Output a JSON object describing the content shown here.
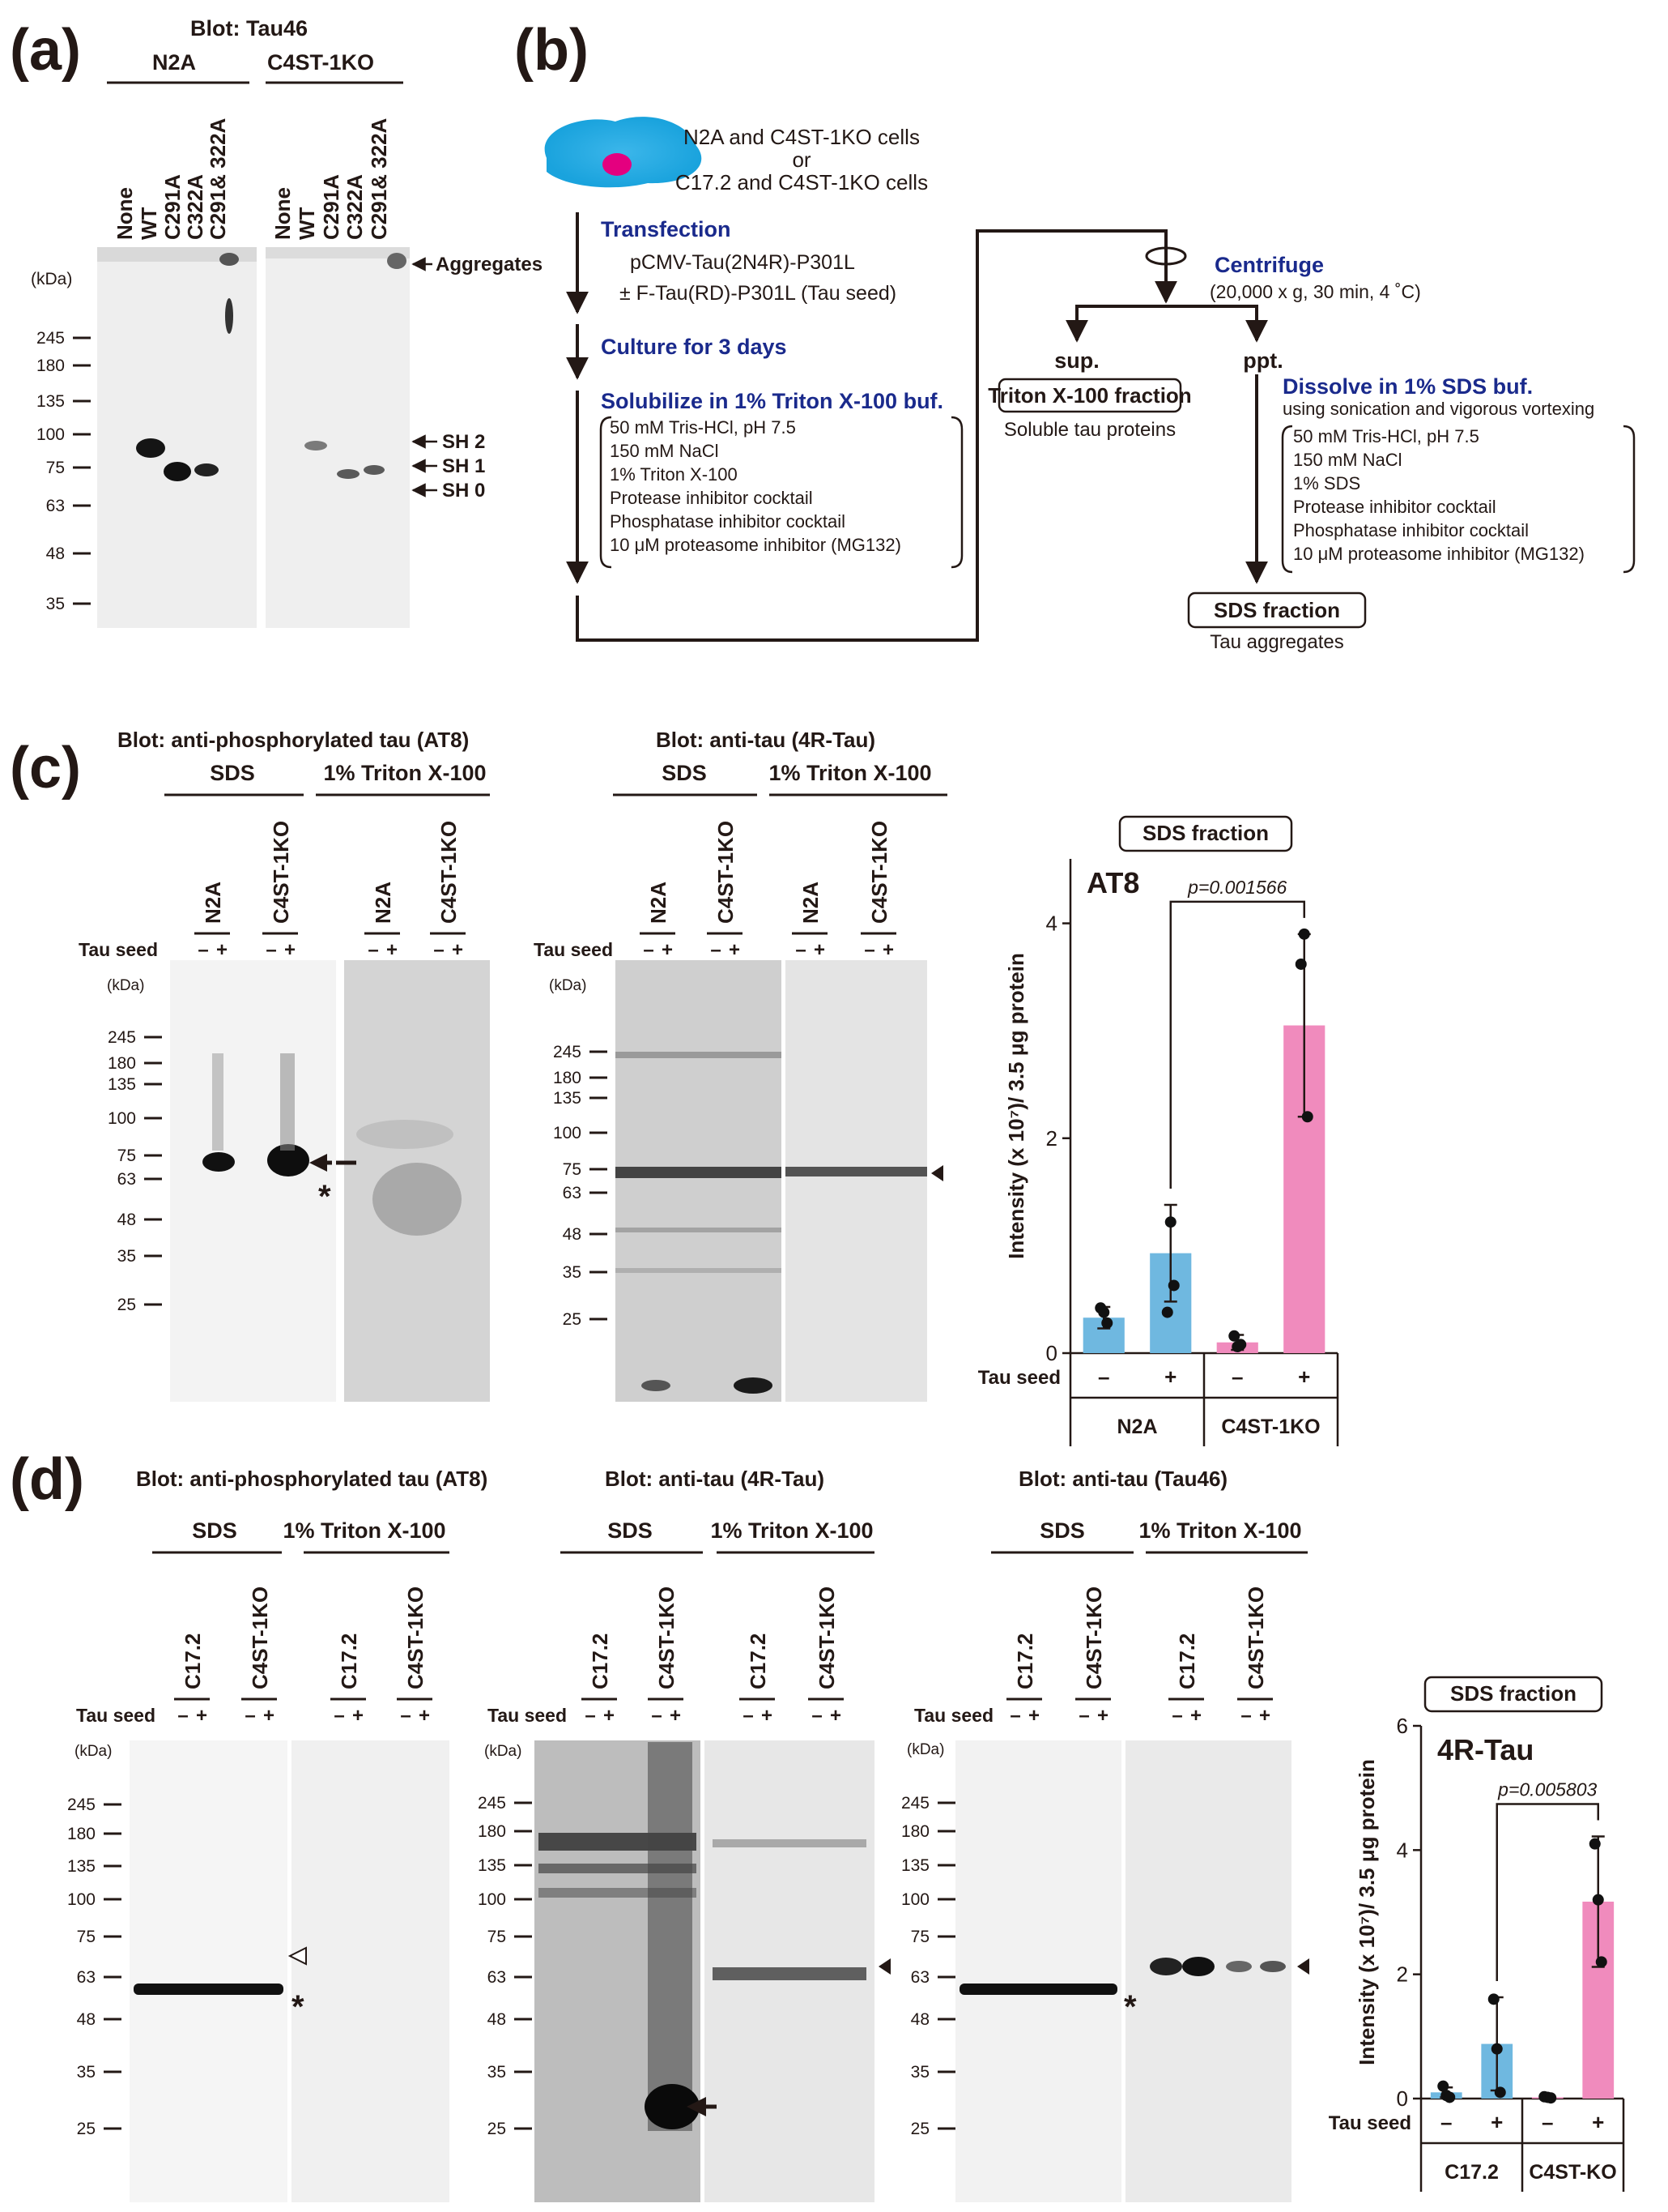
{
  "panels": {
    "a": {
      "label": "(a)",
      "blot": "Blot: Tau46",
      "groups": [
        "N2A",
        "C4ST-1KO"
      ],
      "lanes": [
        "None",
        "WT",
        "C291A",
        "C322A",
        "C291& 322A"
      ],
      "kda_label": "(kDa)",
      "markers": [
        "245",
        "180",
        "135",
        "100",
        "75",
        "63",
        "48",
        "35"
      ],
      "annotations": [
        "Aggregates",
        "SH 2",
        "SH 1",
        "SH 0"
      ]
    },
    "b": {
      "label": "(b)",
      "cells": [
        "N2A and C4ST-1KO cells",
        "or",
        "C17.2 and C4ST-1KO cells"
      ],
      "transfection_title": "Transfection",
      "transfection_lines": [
        "pCMV-Tau(2N4R)-P301L",
        "± F-Tau(RD)-P301L (Tau seed)"
      ],
      "culture": "Culture for 3 days",
      "solubilize": "Solubilize in 1% Triton X-100 buf.",
      "triton_buffer": [
        "50 mM Tris-HCl, pH 7.5",
        "150 mM NaCl",
        "1% Triton X-100",
        "Protease inhibitor cocktail",
        "Phosphatase inhibitor cocktail",
        "10 μM proteasome inhibitor (MG132)"
      ],
      "centrifuge_title": "Centrifuge",
      "centrifuge_cond": "(20,000 x g, 30 min, 4 ˚C)",
      "sup": "sup.",
      "ppt": "ppt.",
      "triton_fraction": "Triton X-100 fraction",
      "soluble": "Soluble tau proteins",
      "dissolve": "Dissolve in 1% SDS buf.",
      "dissolve_sub": "using sonication and vigorous vortexing",
      "sds_buffer": [
        "50 mM Tris-HCl, pH 7.5",
        "150 mM NaCl",
        "1% SDS",
        "Protease inhibitor cocktail",
        "Phosphatase inhibitor cocktail",
        "10 μM proteasome inhibitor (MG132)"
      ],
      "sds_fraction": "SDS fraction",
      "aggregates": "Tau aggregates"
    },
    "c": {
      "label": "(c)",
      "blot1": "Blot: anti-phosphorylated tau (AT8)",
      "blot2": "Blot: anti-tau (4R-Tau)",
      "sds": "SDS",
      "triton": "1% Triton X-100",
      "cells": [
        "N2A",
        "C4ST-1KO"
      ],
      "tau_seed": "Tau seed",
      "minus": "–",
      "plus": "+",
      "kda_label": "(kDa)",
      "markers": [
        "245",
        "180",
        "135",
        "100",
        "75",
        "63",
        "48",
        "35",
        "25"
      ],
      "star": "*"
    },
    "d": {
      "label": "(d)",
      "blot1": "Blot: anti-phosphorylated tau (AT8)",
      "blot2": "Blot: anti-tau (4R-Tau)",
      "blot3": "Blot: anti-tau (Tau46)",
      "sds": "SDS",
      "triton": "1% Triton X-100",
      "cells": [
        "C17.2",
        "C4ST-1KO"
      ],
      "tau_seed": "Tau seed",
      "minus": "–",
      "plus": "+",
      "kda_label": "(kDa)",
      "markers": [
        "245",
        "180",
        "135",
        "100",
        "75",
        "63",
        "48",
        "35",
        "25"
      ],
      "star": "*"
    }
  },
  "chart_data": [
    {
      "type": "bar",
      "badge": "SDS fraction",
      "title": "AT8",
      "ylabel": "Intensity (x 10⁷)/ 3.5 μg protein",
      "ylim": [
        0,
        4.6
      ],
      "yticks": [
        "0",
        "2",
        "4"
      ],
      "xlabel": "Tau seed",
      "categories": [
        "–",
        "+",
        "–",
        "+"
      ],
      "groups": [
        "N2A",
        "C4ST-1KO"
      ],
      "values": [
        0.33,
        0.93,
        0.1,
        3.05
      ],
      "errors": [
        0.1,
        0.45,
        0.07,
        0.85
      ],
      "points": [
        [
          0.42,
          0.38,
          0.28
        ],
        [
          0.38,
          1.22,
          0.63
        ],
        [
          0.16,
          0.06,
          0.08
        ],
        [
          3.62,
          3.9,
          2.2
        ]
      ],
      "colors": [
        "#6fb8e0",
        "#6fb8e0",
        "#f08bbd",
        "#f08bbd"
      ],
      "pvalue": "p=0.001566"
    },
    {
      "type": "bar",
      "badge": "SDS fraction",
      "title": "4R-Tau",
      "ylabel": "Intensity (x 10⁷)/ 3.5 μg protein",
      "ylim": [
        0,
        6
      ],
      "yticks": [
        "0",
        "2",
        "4",
        "6"
      ],
      "xlabel": "Tau seed",
      "categories": [
        "–",
        "+",
        "–",
        "+"
      ],
      "groups": [
        "C17.2",
        "C4ST-KO"
      ],
      "values": [
        0.1,
        0.88,
        0.02,
        3.17
      ],
      "errors": [
        0.08,
        0.75,
        0.02,
        1.05
      ],
      "points": [
        [
          0.2,
          0.05,
          0.02
        ],
        [
          1.6,
          0.8,
          0.1
        ],
        [
          0.03,
          0.02,
          0.01
        ],
        [
          4.1,
          3.2,
          2.2
        ]
      ],
      "colors": [
        "#6fb8e0",
        "#6fb8e0",
        "#f08bbd",
        "#f08bbd"
      ],
      "pvalue": "p=0.005803"
    }
  ]
}
